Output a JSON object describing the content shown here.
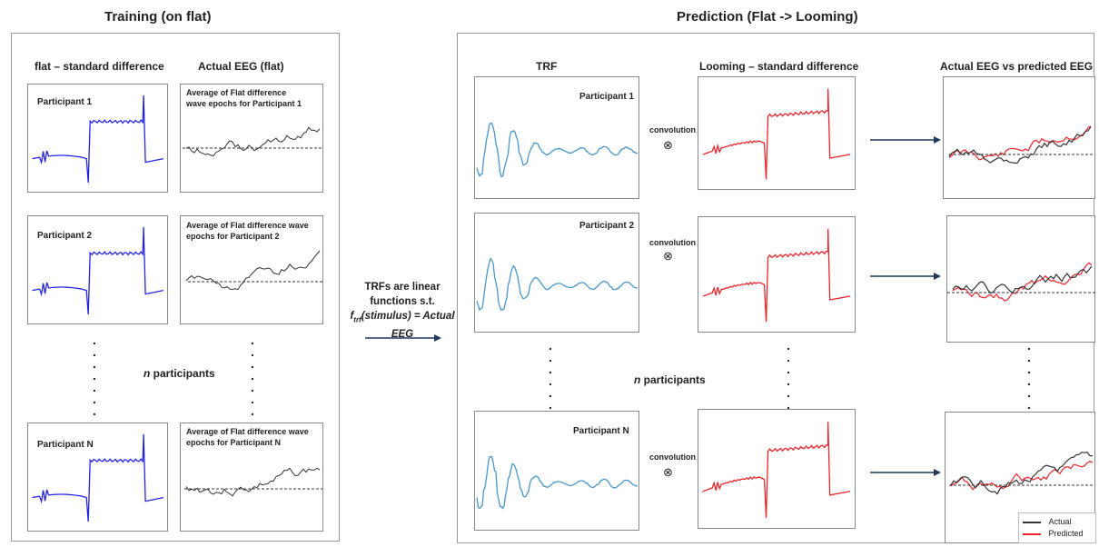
{
  "training": {
    "title": "Training (on flat)",
    "col_stimulus": "flat – standard difference",
    "col_eeg": "Actual EEG (flat)",
    "participants": [
      {
        "label": "Participant 1",
        "eeg_caption": "Average of Flat difference wave epochs for Participant 1"
      },
      {
        "label": "Participant 2",
        "eeg_caption": "Average of Flat difference wave epochs for Participant 2"
      },
      {
        "label": "Participant N",
        "eeg_caption": "Average of Flat difference wave epochs for Participant N"
      }
    ],
    "n_label_italic": "n",
    "n_label_rest": " participants"
  },
  "middle": {
    "line1": "TRFs are linear",
    "line2": "functions s.t.",
    "line3_f": "f",
    "line3_sub": "trf",
    "line3_rest": "(stimulus) = Actual",
    "line4": "EEG"
  },
  "prediction": {
    "title": "Prediction (Flat -> Looming)",
    "col_trf": "TRF",
    "col_stimulus": "Looming – standard difference",
    "col_eeg": "Actual EEG vs predicted EEG",
    "participants": [
      "Participant 1",
      "Participant 2",
      "Participant N"
    ],
    "convolution": "convolution",
    "conv_symbol": "⊗",
    "n_label_italic": "n",
    "n_label_rest": " participants",
    "legend": [
      {
        "name": "Actual",
        "color": "#333333"
      },
      {
        "name": "Predicted",
        "color": "#e8252b"
      }
    ]
  },
  "colors": {
    "stimulus_flat": "#2424e0",
    "stimulus_looming": "#e8252b",
    "trf": "#4a96c8",
    "eeg": "#333333",
    "predicted": "#e8252b"
  }
}
